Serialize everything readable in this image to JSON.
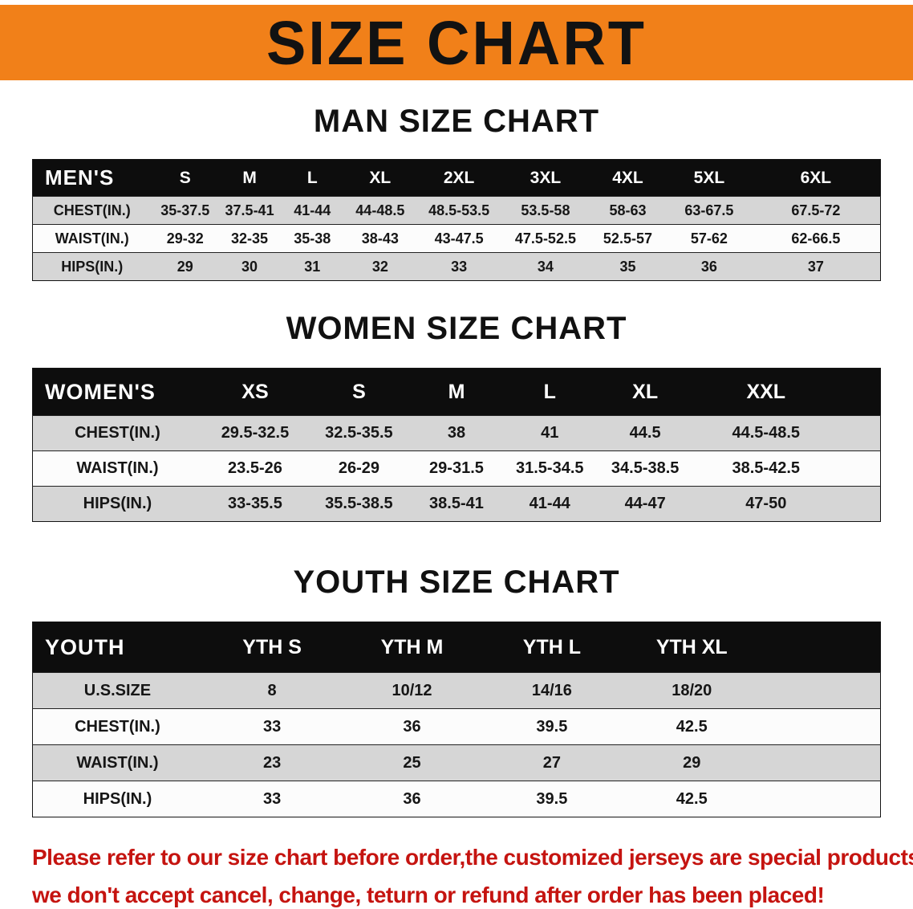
{
  "banner": {
    "title": "SIZE CHART",
    "bg_color": "#f18019"
  },
  "sections": [
    {
      "heading": "MAN SIZE CHART",
      "table": {
        "header": [
          "MEN'S",
          "S",
          "M",
          "L",
          "XL",
          "2XL",
          "3XL",
          "4XL",
          "5XL",
          "6XL"
        ],
        "rows": [
          {
            "label": "CHEST(IN.)",
            "values": [
              "35-37.5",
              "37.5-41",
              "41-44",
              "44-48.5",
              "48.5-53.5",
              "53.5-58",
              "58-63",
              "63-67.5",
              "67.5-72"
            ]
          },
          {
            "label": "WAIST(IN.)",
            "values": [
              "29-32",
              "32-35",
              "35-38",
              "38-43",
              "43-47.5",
              "47.5-52.5",
              "52.5-57",
              "57-62",
              "62-66.5"
            ]
          },
          {
            "label": "HIPS(IN.)",
            "values": [
              "29",
              "30",
              "31",
              "32",
              "33",
              "34",
              "35",
              "36",
              "37"
            ]
          }
        ]
      }
    },
    {
      "heading": "WOMEN SIZE CHART",
      "table": {
        "header": [
          "WOMEN'S",
          "XS",
          "S",
          "M",
          "L",
          "XL",
          "XXL"
        ],
        "rows": [
          {
            "label": "CHEST(IN.)",
            "values": [
              "29.5-32.5",
              "32.5-35.5",
              "38",
              "41",
              "44.5",
              "44.5-48.5"
            ]
          },
          {
            "label": "WAIST(IN.)",
            "values": [
              "23.5-26",
              "26-29",
              "29-31.5",
              "31.5-34.5",
              "34.5-38.5",
              "38.5-42.5"
            ]
          },
          {
            "label": "HIPS(IN.)",
            "values": [
              "33-35.5",
              "35.5-38.5",
              "38.5-41",
              "41-44",
              "44-47",
              "47-50"
            ]
          }
        ]
      }
    },
    {
      "heading": "YOUTH SIZE CHART",
      "table": {
        "header": [
          "YOUTH",
          "YTH S",
          "YTH M",
          "YTH L",
          "YTH XL"
        ],
        "rows": [
          {
            "label": "U.S.SIZE",
            "values": [
              "8",
              "10/12",
              "14/16",
              "18/20"
            ]
          },
          {
            "label": "CHEST(IN.)",
            "values": [
              "33",
              "36",
              "39.5",
              "42.5"
            ]
          },
          {
            "label": "WAIST(IN.)",
            "values": [
              "23",
              "25",
              "27",
              "29"
            ]
          },
          {
            "label": "HIPS(IN.)",
            "values": [
              "33",
              "36",
              "39.5",
              "42.5"
            ]
          }
        ]
      }
    }
  ],
  "footer": {
    "line1": "Please refer to our size chart before order,the customized jerseys are special products,",
    "line2": "we don't accept cancel, change, teturn or refund after order has been placed!",
    "color": "#c51410"
  }
}
